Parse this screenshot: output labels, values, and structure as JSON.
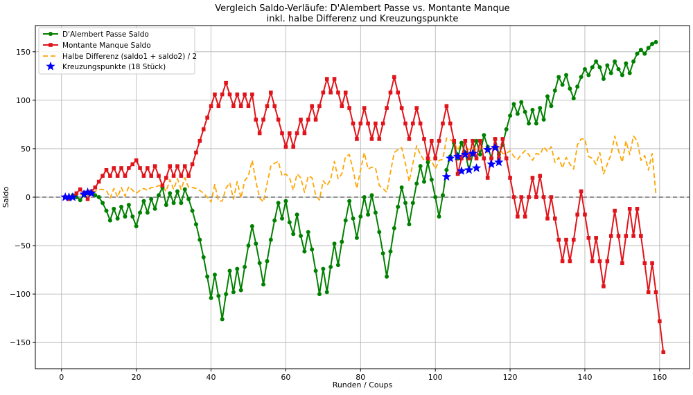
{
  "chart_data": {
    "type": "line",
    "title": "Vergleich Saldo-Verläufe: D'Alembert Passe vs. Montante Manque",
    "subtitle": "inkl. halbe Differenz und Kreuzungspunkte",
    "xlabel": "Runden / Coups",
    "ylabel": "Saldo",
    "xlim": [
      -7,
      168
    ],
    "ylim": [
      -177,
      177
    ],
    "x_ticks": [
      0,
      20,
      40,
      60,
      80,
      100,
      120,
      140,
      160
    ],
    "y_ticks": [
      -150,
      -100,
      -50,
      0,
      50,
      100,
      150
    ],
    "grid": true,
    "legend_position": "top-left",
    "series": [
      {
        "name": "D'Alembert Passe Saldo",
        "color": "#008000",
        "marker": "circle",
        "x_start": 1,
        "values": [
          0,
          0,
          2,
          0,
          -3,
          2,
          4,
          6,
          2,
          0,
          -6,
          -14,
          -24,
          -12,
          -22,
          -10,
          -20,
          -8,
          -20,
          -30,
          -16,
          -4,
          -16,
          -2,
          -12,
          2,
          10,
          -8,
          4,
          -6,
          6,
          -6,
          8,
          -2,
          -14,
          -28,
          -44,
          -62,
          -82,
          -104,
          -80,
          -102,
          -126,
          -100,
          -76,
          -98,
          -74,
          -96,
          -72,
          -50,
          -30,
          -48,
          -68,
          -90,
          -66,
          -44,
          -24,
          -6,
          -22,
          -4,
          -26,
          -38,
          -18,
          -40,
          -56,
          -36,
          -54,
          -76,
          -100,
          -74,
          -98,
          -72,
          -48,
          -70,
          -46,
          -24,
          -4,
          -22,
          -42,
          -20,
          0,
          -18,
          2,
          -16,
          -36,
          -58,
          -82,
          -56,
          -32,
          -10,
          10,
          -6,
          -28,
          -6,
          14,
          32,
          16,
          36,
          18,
          0,
          -20,
          2,
          28,
          42,
          56,
          40,
          56,
          46,
          28,
          44,
          58,
          44,
          64,
          52,
          40,
          60,
          44,
          54,
          70,
          84,
          96,
          86,
          98,
          88,
          76,
          90,
          76,
          92,
          80,
          104,
          94,
          110,
          124,
          116,
          126,
          112,
          102,
          114,
          124,
          132,
          126,
          134,
          140,
          134,
          122,
          136,
          128,
          140,
          132,
          126,
          138,
          128,
          140,
          148,
          152,
          148,
          154,
          158,
          160
        ]
      },
      {
        "name": "Montante Manque Saldo",
        "color": "#e0141a",
        "marker": "square",
        "x_start": 1,
        "values": [
          0,
          -2,
          0,
          4,
          8,
          4,
          -2,
          6,
          10,
          16,
          22,
          28,
          22,
          30,
          22,
          30,
          22,
          30,
          34,
          38,
          30,
          22,
          30,
          22,
          32,
          22,
          12,
          20,
          32,
          22,
          32,
          22,
          32,
          22,
          34,
          46,
          58,
          70,
          82,
          94,
          106,
          94,
          106,
          118,
          106,
          94,
          106,
          94,
          106,
          94,
          106,
          80,
          66,
          80,
          94,
          108,
          94,
          80,
          66,
          52,
          66,
          52,
          66,
          80,
          66,
          80,
          94,
          80,
          94,
          108,
          122,
          108,
          122,
          108,
          94,
          108,
          92,
          76,
          60,
          76,
          92,
          76,
          60,
          76,
          60,
          76,
          92,
          108,
          124,
          108,
          92,
          76,
          60,
          76,
          92,
          76,
          60,
          40,
          58,
          40,
          58,
          76,
          94,
          76,
          58,
          24,
          40,
          58,
          40,
          58,
          40,
          58,
          40,
          20,
          40,
          60,
          40,
          60,
          40,
          20,
          0,
          -20,
          0,
          -20,
          0,
          20,
          0,
          22,
          0,
          -22,
          0,
          -22,
          -44,
          -66,
          -44,
          -66,
          -44,
          -18,
          6,
          -18,
          -42,
          -66,
          -42,
          -66,
          -92,
          -66,
          -40,
          -14,
          -40,
          -68,
          -40,
          -12,
          -40,
          -12,
          -40,
          -68,
          -98,
          -68,
          -98,
          -128,
          -160
        ]
      },
      {
        "name": "Halbe Differenz (saldo1 + saldo2) / 2",
        "color": "#ffa500",
        "marker": "none",
        "dash": true,
        "x_start": 1,
        "values": [
          0,
          -1,
          1,
          2,
          2.5,
          3,
          1,
          6,
          6,
          8,
          8,
          7,
          -1,
          9,
          0,
          10,
          1,
          11,
          7,
          4,
          7,
          9,
          7,
          10,
          10,
          12,
          11,
          6,
          18,
          8,
          19,
          8,
          20,
          10,
          10,
          9,
          7,
          4,
          0,
          -5,
          13,
          -4,
          -4,
          9,
          15,
          -2,
          16,
          -1,
          17,
          22,
          38,
          16,
          -1,
          -5,
          14,
          32,
          35,
          37,
          22,
          24,
          20,
          7,
          24,
          20,
          5,
          22,
          20,
          2,
          -3,
          17,
          12,
          18,
          37,
          19,
          24,
          42,
          44,
          28,
          9,
          28,
          46,
          29,
          31,
          30,
          12,
          9,
          5,
          26,
          46,
          49,
          51,
          35,
          16,
          35,
          53,
          44,
          38,
          38,
          38,
          29,
          38,
          39,
          61,
          59,
          57,
          48,
          57,
          52,
          49,
          51,
          49,
          51,
          52,
          46,
          50,
          52,
          52,
          45,
          45,
          48,
          42,
          39,
          44,
          48,
          44,
          38,
          45,
          44,
          52,
          47,
          52,
          36,
          41,
          30,
          41,
          34,
          29,
          54,
          60,
          60,
          42,
          40,
          34,
          46,
          24,
          34,
          44,
          63,
          48,
          36,
          58,
          44,
          63,
          58,
          38,
          43,
          28,
          45,
          3
        ]
      }
    ],
    "crossings": {
      "name": "Kreuzungspunkte (18 Stück)",
      "color": "#0000ff",
      "marker": "star",
      "points": [
        [
          2,
          0
        ],
        [
          3,
          0
        ],
        [
          7,
          5
        ],
        [
          8,
          4
        ],
        [
          103,
          21
        ],
        [
          104,
          40
        ],
        [
          106,
          42
        ],
        [
          107,
          27
        ],
        [
          108,
          44
        ],
        [
          109,
          28
        ],
        [
          110,
          45
        ],
        [
          111,
          30
        ],
        [
          114,
          49
        ],
        [
          115,
          34
        ],
        [
          116,
          51
        ],
        [
          117,
          36
        ],
        [
          1,
          0
        ],
        [
          6,
          3
        ]
      ]
    }
  }
}
